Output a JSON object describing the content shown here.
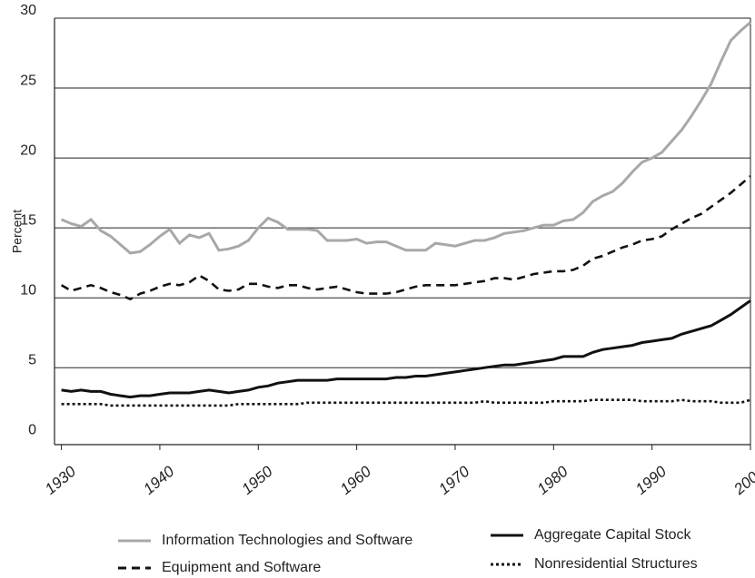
{
  "chart_data": {
    "type": "line",
    "y_label": "Percent",
    "x": [
      1930,
      1931,
      1932,
      1933,
      1934,
      1935,
      1936,
      1937,
      1938,
      1939,
      1940,
      1941,
      1942,
      1943,
      1944,
      1945,
      1946,
      1947,
      1948,
      1949,
      1950,
      1951,
      1952,
      1953,
      1954,
      1955,
      1956,
      1957,
      1958,
      1959,
      1960,
      1961,
      1962,
      1963,
      1964,
      1965,
      1966,
      1967,
      1968,
      1969,
      1970,
      1971,
      1972,
      1973,
      1974,
      1975,
      1976,
      1977,
      1978,
      1979,
      1980,
      1981,
      1982,
      1983,
      1984,
      1985,
      1986,
      1987,
      1988,
      1989,
      1990,
      1991,
      1992,
      1993,
      1994,
      1995,
      1996,
      1997,
      1998,
      1999,
      2000
    ],
    "series": [
      {
        "name": "Information Technologies and Software",
        "color": "#a8a8a8",
        "dash": "solid",
        "values": [
          15.6,
          15.3,
          15.1,
          15.6,
          14.8,
          14.4,
          13.8,
          13.2,
          13.3,
          13.8,
          14.4,
          14.9,
          13.9,
          14.5,
          14.3,
          14.6,
          13.4,
          13.5,
          13.7,
          14.1,
          15.0,
          15.7,
          15.4,
          14.9,
          14.9,
          14.9,
          14.8,
          14.1,
          14.1,
          14.1,
          14.2,
          13.9,
          14.0,
          14.0,
          13.7,
          13.4,
          13.4,
          13.4,
          13.9,
          13.8,
          13.7,
          13.9,
          14.1,
          14.1,
          14.3,
          14.6,
          14.7,
          14.8,
          15.0,
          15.2,
          15.2,
          15.5,
          15.6,
          16.1,
          16.9,
          17.3,
          17.6,
          18.2,
          19.0,
          19.7,
          20.0,
          20.4,
          21.2,
          22.0,
          23.0,
          24.1,
          25.3,
          26.9,
          28.4,
          29.1,
          29.7
        ]
      },
      {
        "name": "Aggregate Capital Stock",
        "color": "#111111",
        "dash": "solid",
        "values": [
          3.4,
          3.3,
          3.4,
          3.3,
          3.3,
          3.1,
          3.0,
          2.9,
          3.0,
          3.0,
          3.1,
          3.2,
          3.2,
          3.2,
          3.3,
          3.4,
          3.3,
          3.2,
          3.3,
          3.4,
          3.6,
          3.7,
          3.9,
          4.0,
          4.1,
          4.1,
          4.1,
          4.1,
          4.2,
          4.2,
          4.2,
          4.2,
          4.2,
          4.2,
          4.3,
          4.3,
          4.4,
          4.4,
          4.5,
          4.6,
          4.7,
          4.8,
          4.9,
          5.0,
          5.1,
          5.2,
          5.2,
          5.3,
          5.4,
          5.5,
          5.6,
          5.8,
          5.8,
          5.8,
          6.1,
          6.3,
          6.4,
          6.5,
          6.6,
          6.8,
          6.9,
          7.0,
          7.1,
          7.4,
          7.6,
          7.8,
          8.0,
          8.4,
          8.8,
          9.3,
          9.8
        ]
      },
      {
        "name": "Equipment and Software",
        "color": "#111111",
        "dash": "dashed",
        "values": [
          10.9,
          10.5,
          10.7,
          10.9,
          10.7,
          10.4,
          10.2,
          9.9,
          10.3,
          10.5,
          10.8,
          11.0,
          10.9,
          11.1,
          11.6,
          11.2,
          10.6,
          10.5,
          10.6,
          11.0,
          11.0,
          10.8,
          10.7,
          10.9,
          10.9,
          10.7,
          10.6,
          10.7,
          10.8,
          10.6,
          10.4,
          10.3,
          10.3,
          10.3,
          10.4,
          10.6,
          10.8,
          10.9,
          10.9,
          10.9,
          10.9,
          11.0,
          11.1,
          11.2,
          11.4,
          11.4,
          11.3,
          11.5,
          11.7,
          11.8,
          11.9,
          11.9,
          12.0,
          12.3,
          12.8,
          13.0,
          13.3,
          13.6,
          13.8,
          14.1,
          14.2,
          14.4,
          14.9,
          15.3,
          15.7,
          16.0,
          16.5,
          17.0,
          17.5,
          18.1,
          18.7
        ]
      },
      {
        "name": "Nonresidential Structures",
        "color": "#111111",
        "dash": "dotted",
        "values": [
          2.4,
          2.4,
          2.4,
          2.4,
          2.4,
          2.3,
          2.3,
          2.3,
          2.3,
          2.3,
          2.3,
          2.3,
          2.3,
          2.3,
          2.3,
          2.3,
          2.3,
          2.3,
          2.4,
          2.4,
          2.4,
          2.4,
          2.4,
          2.4,
          2.4,
          2.5,
          2.5,
          2.5,
          2.5,
          2.5,
          2.5,
          2.5,
          2.5,
          2.5,
          2.5,
          2.5,
          2.5,
          2.5,
          2.5,
          2.5,
          2.5,
          2.5,
          2.5,
          2.6,
          2.5,
          2.5,
          2.5,
          2.5,
          2.5,
          2.5,
          2.6,
          2.6,
          2.6,
          2.6,
          2.7,
          2.7,
          2.7,
          2.7,
          2.7,
          2.6,
          2.6,
          2.6,
          2.6,
          2.7,
          2.6,
          2.6,
          2.6,
          2.5,
          2.5,
          2.5,
          2.7
        ]
      }
    ],
    "xlim": [
      1929.3,
      2000
    ],
    "xticks": [
      1930,
      1940,
      1950,
      1960,
      1970,
      1980,
      1990,
      2000
    ],
    "ylim": [
      -0.5,
      30
    ],
    "yticks": [
      0,
      5,
      10,
      15,
      20,
      25,
      30
    ],
    "grid": true,
    "legend": "bottom"
  }
}
